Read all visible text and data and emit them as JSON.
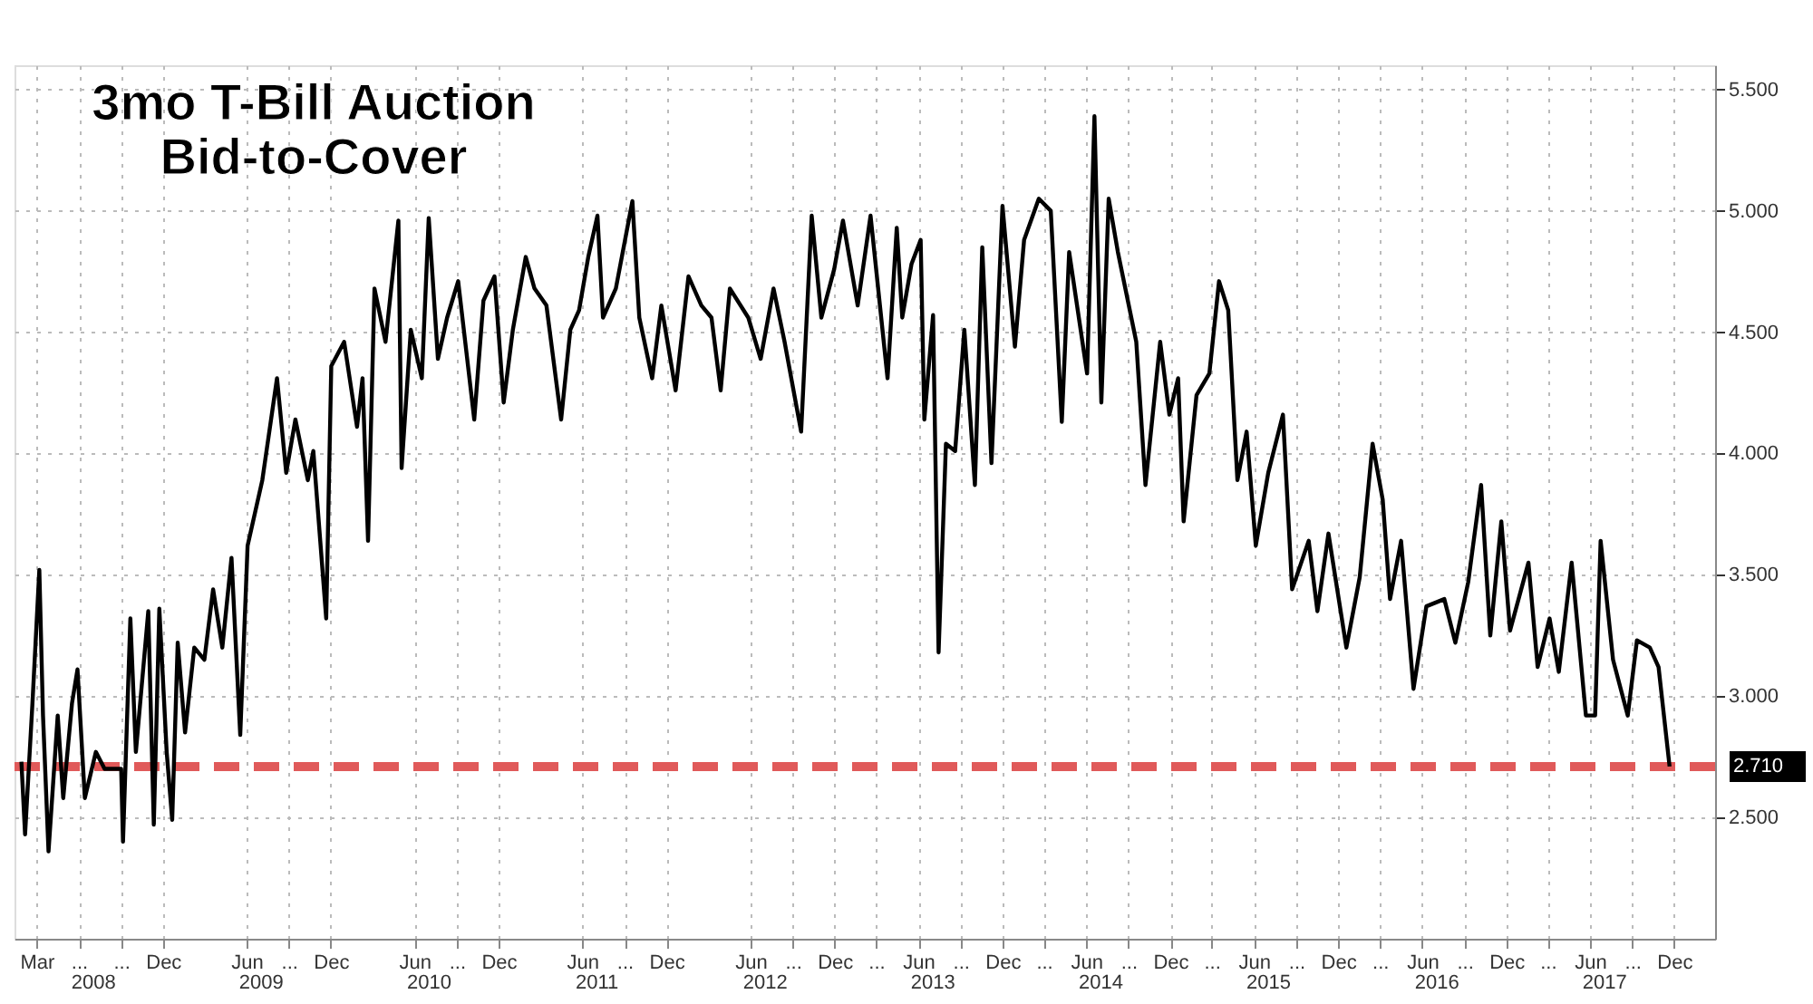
{
  "chart_data": {
    "type": "line",
    "title": "3mo T-Bill Auction\nBid-to-Cover",
    "x": [
      "2008-01-28",
      "2008-02-05",
      "2008-02-21",
      "2008-03-07",
      "2008-03-15",
      "2008-03-27",
      "2008-04-16",
      "2008-04-28",
      "2008-05-17",
      "2008-05-29",
      "2008-06-14",
      "2008-07-08",
      "2008-07-27",
      "2008-09-01",
      "2008-09-05",
      "2008-09-21",
      "2008-10-03",
      "2008-10-30",
      "2008-11-11",
      "2008-11-23",
      "2008-12-09",
      "2008-12-21",
      "2009-01-02",
      "2009-01-18",
      "2009-02-07",
      "2009-03-01",
      "2009-03-20",
      "2009-04-09",
      "2009-04-29",
      "2009-05-18",
      "2009-06-03",
      "2009-07-05",
      "2009-08-06",
      "2009-08-26",
      "2009-09-15",
      "2009-10-12",
      "2009-10-24",
      "2009-11-21",
      "2009-12-02",
      "2009-12-30",
      "2010-01-27",
      "2010-02-08",
      "2010-02-20",
      "2010-03-06",
      "2010-03-30",
      "2010-04-27",
      "2010-05-04",
      "2010-05-24",
      "2010-06-17",
      "2010-07-02",
      "2010-07-22",
      "2010-08-11",
      "2010-09-04",
      "2010-10-09",
      "2010-10-29",
      "2010-11-22",
      "2010-12-12",
      "2011-01-01",
      "2011-01-29",
      "2011-02-17",
      "2011-03-15",
      "2011-04-16",
      "2011-05-06",
      "2011-05-25",
      "2011-06-14",
      "2011-07-04",
      "2011-07-16",
      "2011-08-13",
      "2011-09-18",
      "2011-10-03",
      "2011-10-31",
      "2011-11-20",
      "2011-12-21",
      "2012-01-18",
      "2012-02-15",
      "2012-03-08",
      "2012-03-28",
      "2012-04-17",
      "2012-05-27",
      "2012-06-23",
      "2012-07-21",
      "2012-08-14",
      "2012-09-19",
      "2012-10-12",
      "2012-11-02",
      "2012-11-30",
      "2012-12-19",
      "2013-01-20",
      "2013-02-17",
      "2013-03-26",
      "2013-04-15",
      "2013-04-27",
      "2013-05-17",
      "2013-06-06",
      "2013-06-14",
      "2013-07-03",
      "2013-07-15",
      "2013-07-31",
      "2013-08-20",
      "2013-09-09",
      "2013-10-02",
      "2013-10-18",
      "2013-11-07",
      "2013-12-01",
      "2013-12-28",
      "2014-01-17",
      "2014-02-18",
      "2014-03-16",
      "2014-04-09",
      "2014-04-25",
      "2014-06-03",
      "2014-06-19",
      "2014-07-04",
      "2014-07-20",
      "2014-08-09",
      "2014-09-18",
      "2014-10-08",
      "2014-11-09",
      "2014-11-29",
      "2014-12-18",
      "2014-12-30",
      "2015-01-27",
      "2015-02-24",
      "2015-03-17",
      "2015-04-06",
      "2015-04-26",
      "2015-05-16",
      "2015-06-05",
      "2015-07-02",
      "2015-08-03",
      "2015-08-23",
      "2015-09-28",
      "2015-10-17",
      "2015-11-10",
      "2015-12-19",
      "2016-01-17",
      "2016-02-14",
      "2016-03-07",
      "2016-03-23",
      "2016-04-16",
      "2016-05-13",
      "2016-06-10",
      "2016-07-19",
      "2016-08-12",
      "2016-09-09",
      "2016-10-07",
      "2016-10-27",
      "2016-11-20",
      "2016-12-09",
      "2017-01-18",
      "2017-02-07",
      "2017-03-05",
      "2017-03-25",
      "2017-04-22",
      "2017-05-23",
      "2017-06-12",
      "2017-06-24",
      "2017-07-21",
      "2017-08-22",
      "2017-09-11",
      "2017-10-09",
      "2017-10-28",
      "2017-11-21"
    ],
    "series": [
      {
        "color": "#000000",
        "values": [
          2.73,
          2.43,
          2.97,
          3.52,
          2.92,
          2.36,
          2.92,
          2.58,
          2.97,
          3.11,
          2.58,
          2.77,
          2.7,
          2.7,
          2.4,
          3.32,
          2.77,
          3.35,
          2.47,
          3.36,
          2.77,
          2.49,
          3.22,
          2.85,
          3.2,
          3.15,
          3.44,
          3.2,
          3.57,
          2.84,
          3.62,
          3.89,
          4.31,
          3.92,
          4.14,
          3.89,
          4.01,
          3.32,
          4.36,
          4.46,
          4.11,
          4.31,
          3.64,
          4.68,
          4.46,
          4.96,
          3.94,
          4.51,
          4.31,
          4.97,
          4.39,
          4.56,
          4.71,
          4.14,
          4.63,
          4.73,
          4.21,
          4.51,
          4.81,
          4.68,
          4.61,
          4.14,
          4.51,
          4.59,
          4.81,
          4.98,
          4.56,
          4.68,
          5.04,
          4.56,
          4.31,
          4.61,
          4.26,
          4.73,
          4.61,
          4.56,
          4.26,
          4.68,
          4.56,
          4.39,
          4.68,
          4.46,
          4.09,
          4.98,
          4.56,
          4.76,
          4.96,
          4.61,
          4.98,
          4.31,
          4.93,
          4.56,
          4.78,
          4.88,
          4.14,
          4.57,
          3.18,
          4.04,
          4.01,
          4.51,
          3.87,
          4.85,
          3.96,
          5.02,
          4.44,
          4.88,
          5.05,
          5.0,
          4.13,
          4.83,
          4.33,
          5.39,
          4.21,
          5.05,
          4.83,
          4.46,
          3.87,
          4.46,
          4.16,
          4.31,
          3.72,
          4.24,
          4.33,
          4.71,
          4.59,
          3.89,
          4.09,
          3.62,
          3.92,
          4.16,
          3.44,
          3.64,
          3.35,
          3.67,
          3.2,
          3.49,
          4.04,
          3.81,
          3.4,
          3.64,
          3.03,
          3.37,
          3.4,
          3.22,
          3.47,
          3.87,
          3.25,
          3.72,
          3.27,
          3.55,
          3.12,
          3.32,
          3.1,
          3.55,
          2.92,
          2.92,
          3.64,
          3.15,
          2.92,
          3.23,
          3.2,
          3.12,
          2.71
        ]
      }
    ],
    "xlim": [
      "2008-01-13",
      "2018-02-28"
    ],
    "xticks": [
      {
        "value": "2008-03",
        "label": "Mar"
      },
      {
        "value": "2008-06",
        "label": "..."
      },
      {
        "value": "2008-09",
        "label": "..."
      },
      {
        "value": "2008-12",
        "label": "Dec"
      },
      {
        "value": "2009-06",
        "label": "Jun"
      },
      {
        "value": "2009-09",
        "label": "..."
      },
      {
        "value": "2009-12",
        "label": "Dec"
      },
      {
        "value": "2010-06",
        "label": "Jun"
      },
      {
        "value": "2010-09",
        "label": "..."
      },
      {
        "value": "2010-12",
        "label": "Dec"
      },
      {
        "value": "2011-06",
        "label": "Jun"
      },
      {
        "value": "2011-09",
        "label": "..."
      },
      {
        "value": "2011-12",
        "label": "Dec"
      },
      {
        "value": "2012-06",
        "label": "Jun"
      },
      {
        "value": "2012-09",
        "label": "..."
      },
      {
        "value": "2012-12",
        "label": "Dec"
      },
      {
        "value": "2013-03",
        "label": "..."
      },
      {
        "value": "2013-06",
        "label": "Jun"
      },
      {
        "value": "2013-09",
        "label": "..."
      },
      {
        "value": "2013-12",
        "label": "Dec"
      },
      {
        "value": "2014-03",
        "label": "..."
      },
      {
        "value": "2014-06",
        "label": "Jun"
      },
      {
        "value": "2014-09",
        "label": "..."
      },
      {
        "value": "2014-12",
        "label": "Dec"
      },
      {
        "value": "2015-03",
        "label": "..."
      },
      {
        "value": "2015-06",
        "label": "Jun"
      },
      {
        "value": "2015-09",
        "label": "..."
      },
      {
        "value": "2015-12",
        "label": "Dec"
      },
      {
        "value": "2016-03",
        "label": "..."
      },
      {
        "value": "2016-06",
        "label": "Jun"
      },
      {
        "value": "2016-09",
        "label": "..."
      },
      {
        "value": "2016-12",
        "label": "Dec"
      },
      {
        "value": "2017-03",
        "label": "..."
      },
      {
        "value": "2017-06",
        "label": "Jun"
      },
      {
        "value": "2017-09",
        "label": "..."
      },
      {
        "value": "2017-12",
        "label": "Dec"
      }
    ],
    "x2lim": [
      "2008-01-13",
      "2018-02-28"
    ],
    "x2ticks": [
      {
        "value": "2008-07-01",
        "label": "2008"
      },
      {
        "value": "2009-07-01",
        "label": "2009"
      },
      {
        "value": "2010-07-01",
        "label": "2010"
      },
      {
        "value": "2011-07-01",
        "label": "2011"
      },
      {
        "value": "2012-07-01",
        "label": "2012"
      },
      {
        "value": "2013-07-01",
        "label": "2013"
      },
      {
        "value": "2014-07-01",
        "label": "2014"
      },
      {
        "value": "2015-07-01",
        "label": "2015"
      },
      {
        "value": "2016-07-01",
        "label": "2016"
      },
      {
        "value": "2017-07-01",
        "label": "2017"
      }
    ],
    "ylim": [
      2.0,
      5.6
    ],
    "yticks": [
      {
        "value": 2.5,
        "label": "2.500"
      },
      {
        "value": 3.0,
        "label": "3.000"
      },
      {
        "value": 3.5,
        "label": "3.500"
      },
      {
        "value": 4.0,
        "label": "4.000"
      },
      {
        "value": 4.5,
        "label": "4.500"
      },
      {
        "value": 5.0,
        "label": "5.000"
      },
      {
        "value": 5.5,
        "label": "5.500"
      }
    ],
    "ref_lines": [
      {
        "axis": "y",
        "value": 2.71,
        "label": "2.710",
        "color": "#e05a5a",
        "line_style": "dashed"
      }
    ],
    "grid": true,
    "line_style": "solid"
  }
}
